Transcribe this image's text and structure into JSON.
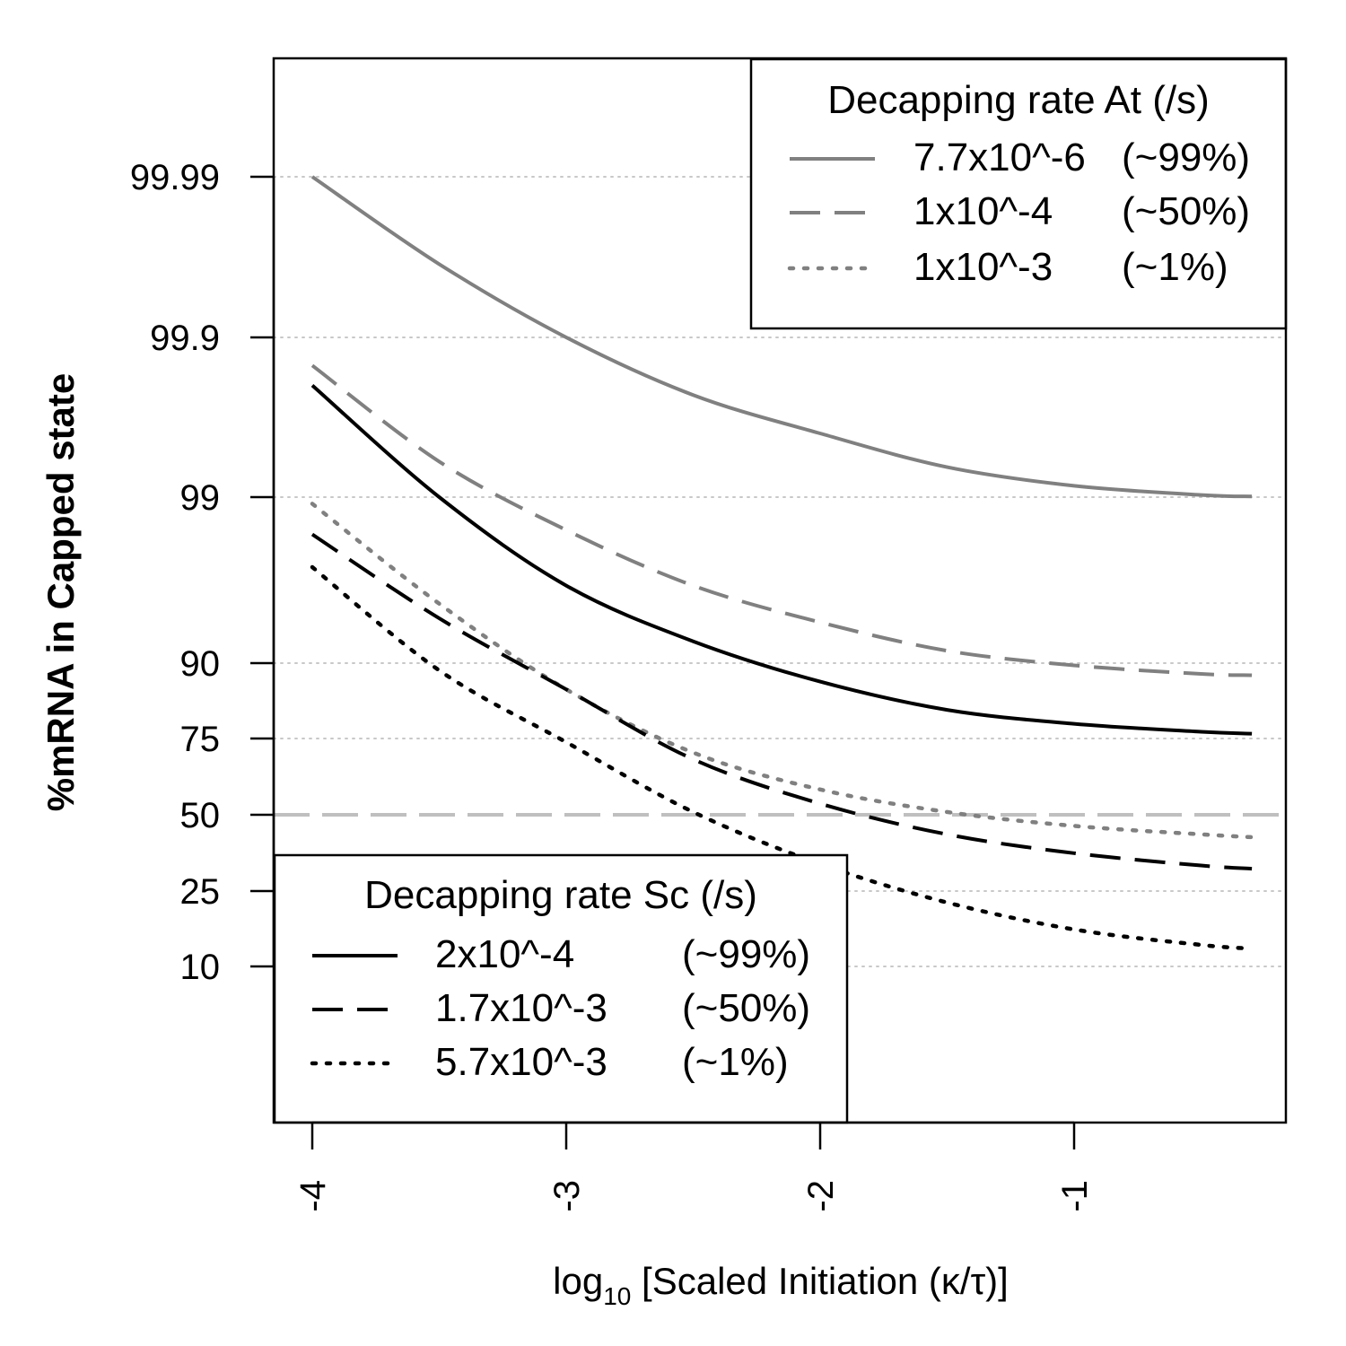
{
  "chart_data": {
    "type": "line",
    "xlabel": {
      "prefix": "log",
      "subscript": "10",
      "rest": " [Scaled Initiation (κ/τ)]"
    },
    "ylabel": "%mRNA in Capped state",
    "x_ticks": [
      -4,
      -3,
      -2,
      -1
    ],
    "x_tick_labels": [
      "-4",
      "-3",
      "-2",
      "-1"
    ],
    "xlim": [
      -4.15,
      -0.15
    ],
    "y_scale": "logit (transformed percent)",
    "y_ticks": [
      10,
      25,
      50,
      75,
      90,
      99,
      99.9,
      99.99
    ],
    "y_tick_labels": [
      "10",
      "25",
      "50",
      "75",
      "90",
      "99",
      "99.9",
      "99.99"
    ],
    "y_gridlines": [
      10,
      25,
      75,
      90,
      99,
      99.9,
      99.99
    ],
    "reference_line": {
      "y": 50,
      "style": "long-dash",
      "color": "#bfbfbf"
    },
    "grid": "horizontal dotted at y ticks",
    "colors": {
      "gray": "#808080",
      "black": "#000000",
      "grid": "#c8c8c8"
    },
    "x": [
      -4.0,
      -3.5,
      -3.0,
      -2.5,
      -2.0,
      -1.5,
      -1.0,
      -0.5,
      -0.3
    ],
    "series": [
      {
        "name": "7.7x10^-6 (~99%)",
        "group": "At",
        "color": "#808080",
        "dash": "solid",
        "values": [
          99.99,
          99.965,
          99.9,
          99.77,
          99.6,
          99.35,
          99.15,
          99.03,
          99.01
        ]
      },
      {
        "name": "1x10^-4 (~50%)",
        "group": "At",
        "color": "#808080",
        "dash": "dashed",
        "values": [
          99.85,
          99.4,
          98.4,
          96.5,
          94.2,
          91.5,
          89.7,
          88.5,
          88.3
        ]
      },
      {
        "name": "1x10^-3 (~1%)",
        "group": "At",
        "color": "#808080",
        "dash": "dotted",
        "values": [
          98.9,
          95.5,
          86.0,
          71.0,
          59.0,
          51.0,
          46.0,
          43.0,
          42.0
        ]
      },
      {
        "name": "2x10^-4 (~99%)",
        "group": "Sc",
        "color": "#000000",
        "dash": "solid",
        "values": [
          99.8,
          99.0,
          96.5,
          92.5,
          87.3,
          82.0,
          78.8,
          76.8,
          76.3
        ]
      },
      {
        "name": "1.7x10^-3 (~50%)",
        "group": "Sc",
        "color": "#000000",
        "dash": "dashed",
        "values": [
          98.3,
          94.5,
          86.0,
          69.0,
          54.0,
          43.0,
          36.5,
          32.5,
          31.5
        ]
      },
      {
        "name": "5.7x10^-3 (~1%)",
        "group": "Sc",
        "color": "#000000",
        "dash": "dotted",
        "values": [
          97.3,
          89.0,
          74.0,
          51.0,
          33.0,
          22.0,
          16.0,
          13.2,
          12.6
        ]
      }
    ],
    "legends": [
      {
        "position": "top-right",
        "title": "Decapping rate At (/s)",
        "entries": [
          {
            "rate": "7.7x10^-6",
            "pct": "(~99%)",
            "color": "#808080",
            "dash": "solid"
          },
          {
            "rate": "1x10^-4",
            "pct": "(~50%)",
            "color": "#808080",
            "dash": "dashed"
          },
          {
            "rate": "1x10^-3",
            "pct": "(~1%)",
            "color": "#808080",
            "dash": "dotted"
          }
        ]
      },
      {
        "position": "bottom-left",
        "title": "Decapping rate Sc (/s)",
        "entries": [
          {
            "rate": "2x10^-4",
            "pct": "(~99%)",
            "color": "#000000",
            "dash": "solid"
          },
          {
            "rate": "1.7x10^-3",
            "pct": "(~50%)",
            "color": "#000000",
            "dash": "dashed"
          },
          {
            "rate": "5.7x10^-3",
            "pct": "(~1%)",
            "color": "#000000",
            "dash": "dotted"
          }
        ]
      }
    ]
  }
}
